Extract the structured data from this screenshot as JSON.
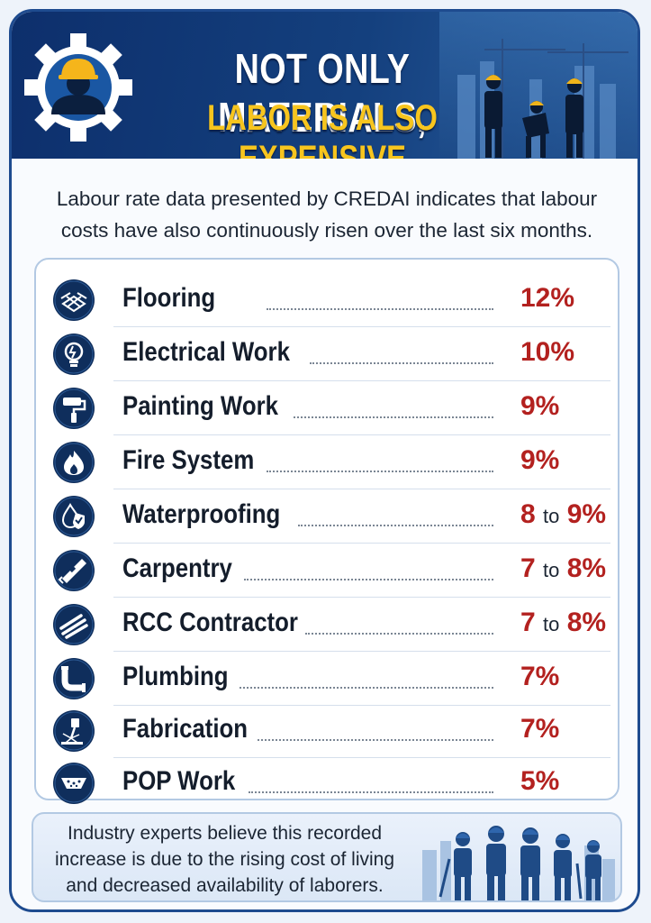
{
  "header": {
    "title_line1": "NOT ONLY MATERIALS,",
    "title_line2": "LABOR IS ALSO EXPENSIVE",
    "emblem_icon": "worker-gear-icon",
    "colors": {
      "navy": "#0d2f6c",
      "gold": "#f7c51e"
    }
  },
  "intro": "Labour rate data presented by CREDAI indicates that labour costs have also continuously risen over the last six months.",
  "rates": [
    {
      "name": "Flooring",
      "icon": "tiles-icon",
      "value": "12%",
      "from": "",
      "to_word": "",
      "to": ""
    },
    {
      "name": "Electrical Work",
      "icon": "lightbulb-icon",
      "value": "10%",
      "from": "",
      "to_word": "",
      "to": ""
    },
    {
      "name": "Painting Work",
      "icon": "paint-roller-icon",
      "value": "9%",
      "from": "",
      "to_word": "",
      "to": ""
    },
    {
      "name": "Fire System",
      "icon": "flame-icon",
      "value": "9%",
      "from": "",
      "to_word": "",
      "to": ""
    },
    {
      "name": "Waterproofing",
      "icon": "water-shield-icon",
      "value": "",
      "from": "8",
      "to_word": "to",
      "to": "9%"
    },
    {
      "name": "Carpentry",
      "icon": "saw-icon",
      "value": "",
      "from": "7",
      "to_word": "to",
      "to": "8%"
    },
    {
      "name": "RCC Contractor",
      "icon": "rebar-icon",
      "value": "",
      "from": "7",
      "to_word": "to",
      "to": "8%"
    },
    {
      "name": "Plumbing",
      "icon": "pipe-icon",
      "value": "7%",
      "from": "",
      "to_word": "",
      "to": ""
    },
    {
      "name": "Fabrication",
      "icon": "welding-icon",
      "value": "7%",
      "from": "",
      "to_word": "",
      "to": ""
    },
    {
      "name": "POP Work",
      "icon": "ceiling-icon",
      "value": "5%",
      "from": "",
      "to_word": "",
      "to": ""
    }
  ],
  "footer": {
    "text": "Industry experts believe this recorded increase is due to the rising cost of living and decreased availability of laborers."
  },
  "accent_red": "#b3211f"
}
